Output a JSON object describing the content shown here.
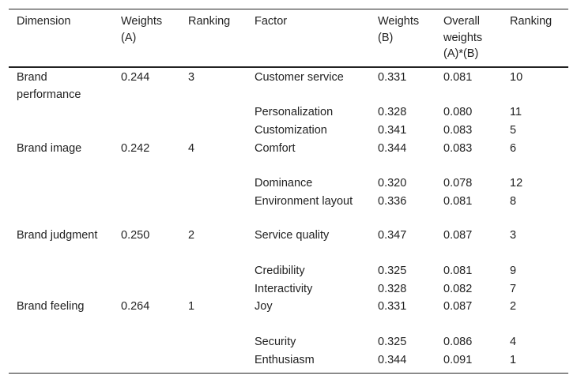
{
  "table": {
    "headers": [
      "Dimension",
      "Weights (A)",
      "Ranking",
      "Factor",
      "Weights (B)",
      "Overall weights (A)*(B)",
      "Ranking"
    ],
    "dimensions": [
      {
        "dimension": "Brand performance",
        "weight_a": "0.244",
        "ranking": "3",
        "factors": [
          {
            "factor": "Customer service",
            "weight_b": "0.331",
            "overall": "0.081",
            "ranking": "10"
          },
          {
            "factor": "Personalization",
            "weight_b": "0.328",
            "overall": "0.080",
            "ranking": "11"
          },
          {
            "factor": "Customization",
            "weight_b": "0.341",
            "overall": "0.083",
            "ranking": "5"
          }
        ]
      },
      {
        "dimension": "Brand image",
        "weight_a": "0.242",
        "ranking": "4",
        "factors": [
          {
            "factor": "Comfort",
            "weight_b": "0.344",
            "overall": "0.083",
            "ranking": "6"
          },
          {
            "factor": "Dominance",
            "weight_b": "0.320",
            "overall": "0.078",
            "ranking": "12"
          },
          {
            "factor": "Environment layout",
            "weight_b": "0.336",
            "overall": "0.081",
            "ranking": "8"
          }
        ]
      },
      {
        "dimension": "Brand judgment",
        "weight_a": "0.250",
        "ranking": "2",
        "factors": [
          {
            "factor": "Service quality",
            "weight_b": "0.347",
            "overall": "0.087",
            "ranking": "3"
          },
          {
            "factor": "Credibility",
            "weight_b": "0.325",
            "overall": "0.081",
            "ranking": "9"
          },
          {
            "factor": "Interactivity",
            "weight_b": "0.328",
            "overall": "0.082",
            "ranking": "7"
          }
        ]
      },
      {
        "dimension": "Brand feeling",
        "weight_a": "0.264",
        "ranking": "1",
        "factors": [
          {
            "factor": "Joy",
            "weight_b": "0.331",
            "overall": "0.087",
            "ranking": "2"
          },
          {
            "factor": "Security",
            "weight_b": "0.325",
            "overall": "0.086",
            "ranking": "4"
          },
          {
            "factor": "Enthusiasm",
            "weight_b": "0.344",
            "overall": "0.091",
            "ranking": "1"
          }
        ]
      }
    ]
  }
}
